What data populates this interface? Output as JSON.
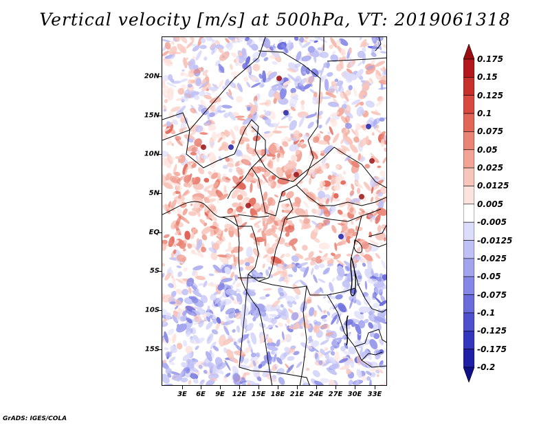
{
  "title": "Vertical velocity [m/s] at 500hPa, VT: 2019061318",
  "footer": "GrADS: IGES/COLA",
  "axes": {
    "lat_labels": [
      "20N",
      "15N",
      "10N",
      "5N",
      "EQ",
      "5S",
      "10S",
      "15S"
    ],
    "lon_labels": [
      "3E",
      "6E",
      "9E",
      "12E",
      "15E",
      "18E",
      "21E",
      "24E",
      "27E",
      "30E",
      "33E"
    ]
  },
  "colorbar": {
    "labels": [
      "0.175",
      "0.15",
      "0.125",
      "0.1",
      "0.075",
      "0.05",
      "0.025",
      "0.0125",
      "0.005",
      "-0.005",
      "-0.0125",
      "-0.025",
      "-0.05",
      "-0.075",
      "-0.1",
      "-0.125",
      "-0.175",
      "-0.2"
    ],
    "colors": [
      "#9b0f12",
      "#b3191c",
      "#c8302c",
      "#d84a40",
      "#e26658",
      "#ea8475",
      "#f2a597",
      "#f8c5bb",
      "#fde3de",
      "#ffffff",
      "#dcdcfb",
      "#bfc0f5",
      "#a3a4ee",
      "#8587e6",
      "#6a6cdc",
      "#4e50ce",
      "#3436bd",
      "#1f20a6",
      "#100f8a"
    ]
  },
  "field": {
    "palette_positive": [
      "#fde3de",
      "#f8c5bb",
      "#f2a597",
      "#ea8475",
      "#e26658"
    ],
    "palette_negative": [
      "#dcdcfb",
      "#bfc0f5",
      "#a3a4ee",
      "#8587e6",
      "#6a6cdc"
    ],
    "hotspot_colors": [
      "#9b0f12",
      "#1f20a6"
    ]
  }
}
